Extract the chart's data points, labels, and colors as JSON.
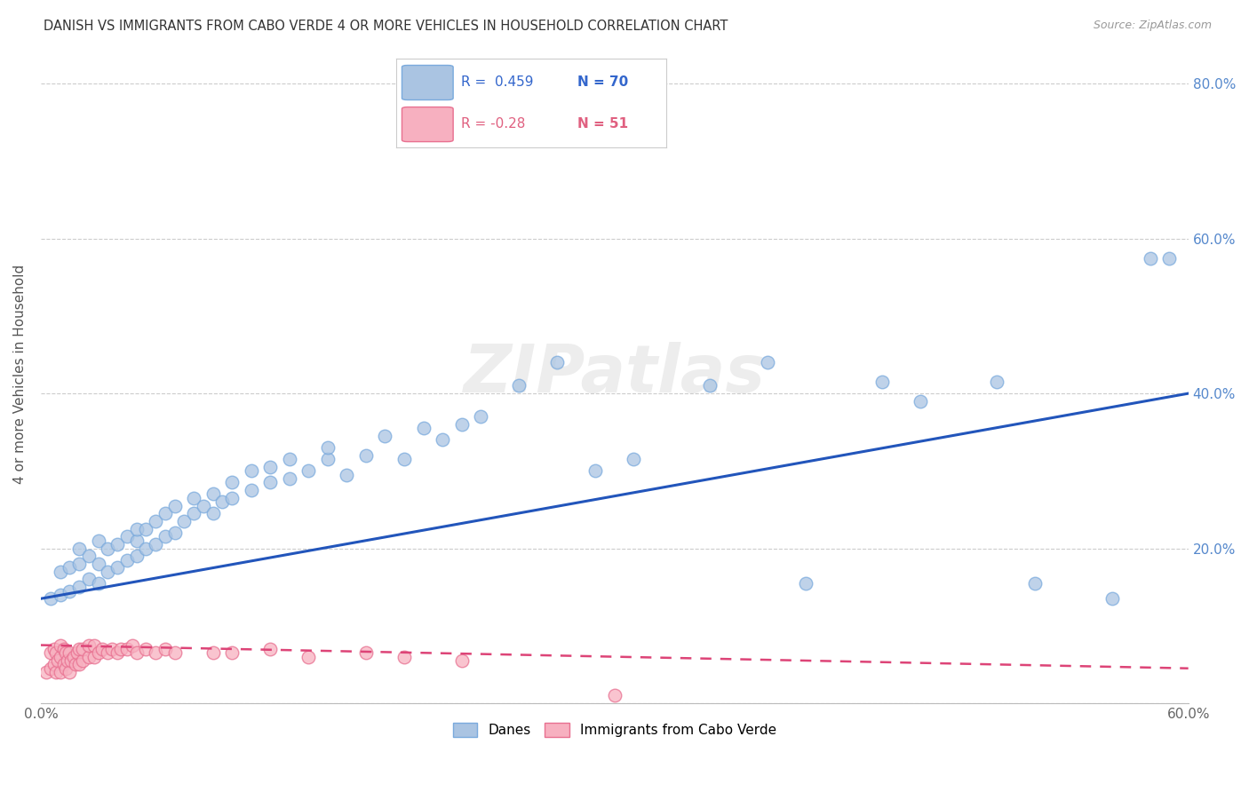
{
  "title": "DANISH VS IMMIGRANTS FROM CABO VERDE 4 OR MORE VEHICLES IN HOUSEHOLD CORRELATION CHART",
  "source": "Source: ZipAtlas.com",
  "ylabel": "4 or more Vehicles in Household",
  "xlim": [
    0.0,
    0.6
  ],
  "ylim": [
    0.0,
    0.85
  ],
  "xticks": [
    0.0,
    0.1,
    0.2,
    0.3,
    0.4,
    0.5,
    0.6
  ],
  "yticks": [
    0.0,
    0.2,
    0.4,
    0.6,
    0.8
  ],
  "danes_color": "#aac4e2",
  "danes_edge": "#7aaadd",
  "cabo_color": "#f7b0c0",
  "cabo_edge": "#e87090",
  "danes_R": 0.459,
  "danes_N": 70,
  "cabo_R": -0.28,
  "cabo_N": 51,
  "danes_line_color": "#2255bb",
  "cabo_line_color": "#dd4477",
  "danes_line_start_y": 0.135,
  "danes_line_end_y": 0.4,
  "cabo_line_start_y": 0.075,
  "cabo_line_end_y": 0.045,
  "watermark": "ZIPatlas",
  "danes_x": [
    0.005,
    0.01,
    0.01,
    0.015,
    0.015,
    0.02,
    0.02,
    0.02,
    0.025,
    0.025,
    0.03,
    0.03,
    0.03,
    0.035,
    0.035,
    0.04,
    0.04,
    0.045,
    0.045,
    0.05,
    0.05,
    0.05,
    0.055,
    0.055,
    0.06,
    0.06,
    0.065,
    0.065,
    0.07,
    0.07,
    0.075,
    0.08,
    0.08,
    0.085,
    0.09,
    0.09,
    0.095,
    0.1,
    0.1,
    0.11,
    0.11,
    0.12,
    0.12,
    0.13,
    0.13,
    0.14,
    0.15,
    0.15,
    0.16,
    0.17,
    0.18,
    0.19,
    0.2,
    0.21,
    0.22,
    0.23,
    0.25,
    0.27,
    0.29,
    0.31,
    0.35,
    0.38,
    0.4,
    0.44,
    0.46,
    0.5,
    0.52,
    0.56,
    0.58,
    0.59
  ],
  "danes_y": [
    0.135,
    0.14,
    0.17,
    0.145,
    0.175,
    0.15,
    0.18,
    0.2,
    0.16,
    0.19,
    0.155,
    0.18,
    0.21,
    0.17,
    0.2,
    0.175,
    0.205,
    0.185,
    0.215,
    0.19,
    0.21,
    0.225,
    0.2,
    0.225,
    0.205,
    0.235,
    0.215,
    0.245,
    0.22,
    0.255,
    0.235,
    0.245,
    0.265,
    0.255,
    0.245,
    0.27,
    0.26,
    0.265,
    0.285,
    0.275,
    0.3,
    0.285,
    0.305,
    0.29,
    0.315,
    0.3,
    0.315,
    0.33,
    0.295,
    0.32,
    0.345,
    0.315,
    0.355,
    0.34,
    0.36,
    0.37,
    0.41,
    0.44,
    0.3,
    0.315,
    0.41,
    0.44,
    0.155,
    0.415,
    0.39,
    0.415,
    0.155,
    0.135,
    0.575,
    0.575
  ],
  "cabo_x": [
    0.003,
    0.005,
    0.005,
    0.007,
    0.007,
    0.008,
    0.008,
    0.009,
    0.01,
    0.01,
    0.01,
    0.012,
    0.012,
    0.013,
    0.013,
    0.014,
    0.015,
    0.015,
    0.016,
    0.017,
    0.018,
    0.019,
    0.02,
    0.02,
    0.022,
    0.022,
    0.025,
    0.025,
    0.028,
    0.028,
    0.03,
    0.032,
    0.035,
    0.037,
    0.04,
    0.042,
    0.045,
    0.048,
    0.05,
    0.055,
    0.06,
    0.065,
    0.07,
    0.09,
    0.1,
    0.12,
    0.14,
    0.17,
    0.19,
    0.22,
    0.3
  ],
  "cabo_y": [
    0.04,
    0.045,
    0.065,
    0.05,
    0.07,
    0.04,
    0.065,
    0.055,
    0.04,
    0.06,
    0.075,
    0.05,
    0.07,
    0.045,
    0.065,
    0.055,
    0.04,
    0.065,
    0.055,
    0.06,
    0.05,
    0.065,
    0.05,
    0.07,
    0.055,
    0.07,
    0.06,
    0.075,
    0.06,
    0.075,
    0.065,
    0.07,
    0.065,
    0.07,
    0.065,
    0.07,
    0.07,
    0.075,
    0.065,
    0.07,
    0.065,
    0.07,
    0.065,
    0.065,
    0.065,
    0.07,
    0.06,
    0.065,
    0.06,
    0.055,
    0.01
  ]
}
